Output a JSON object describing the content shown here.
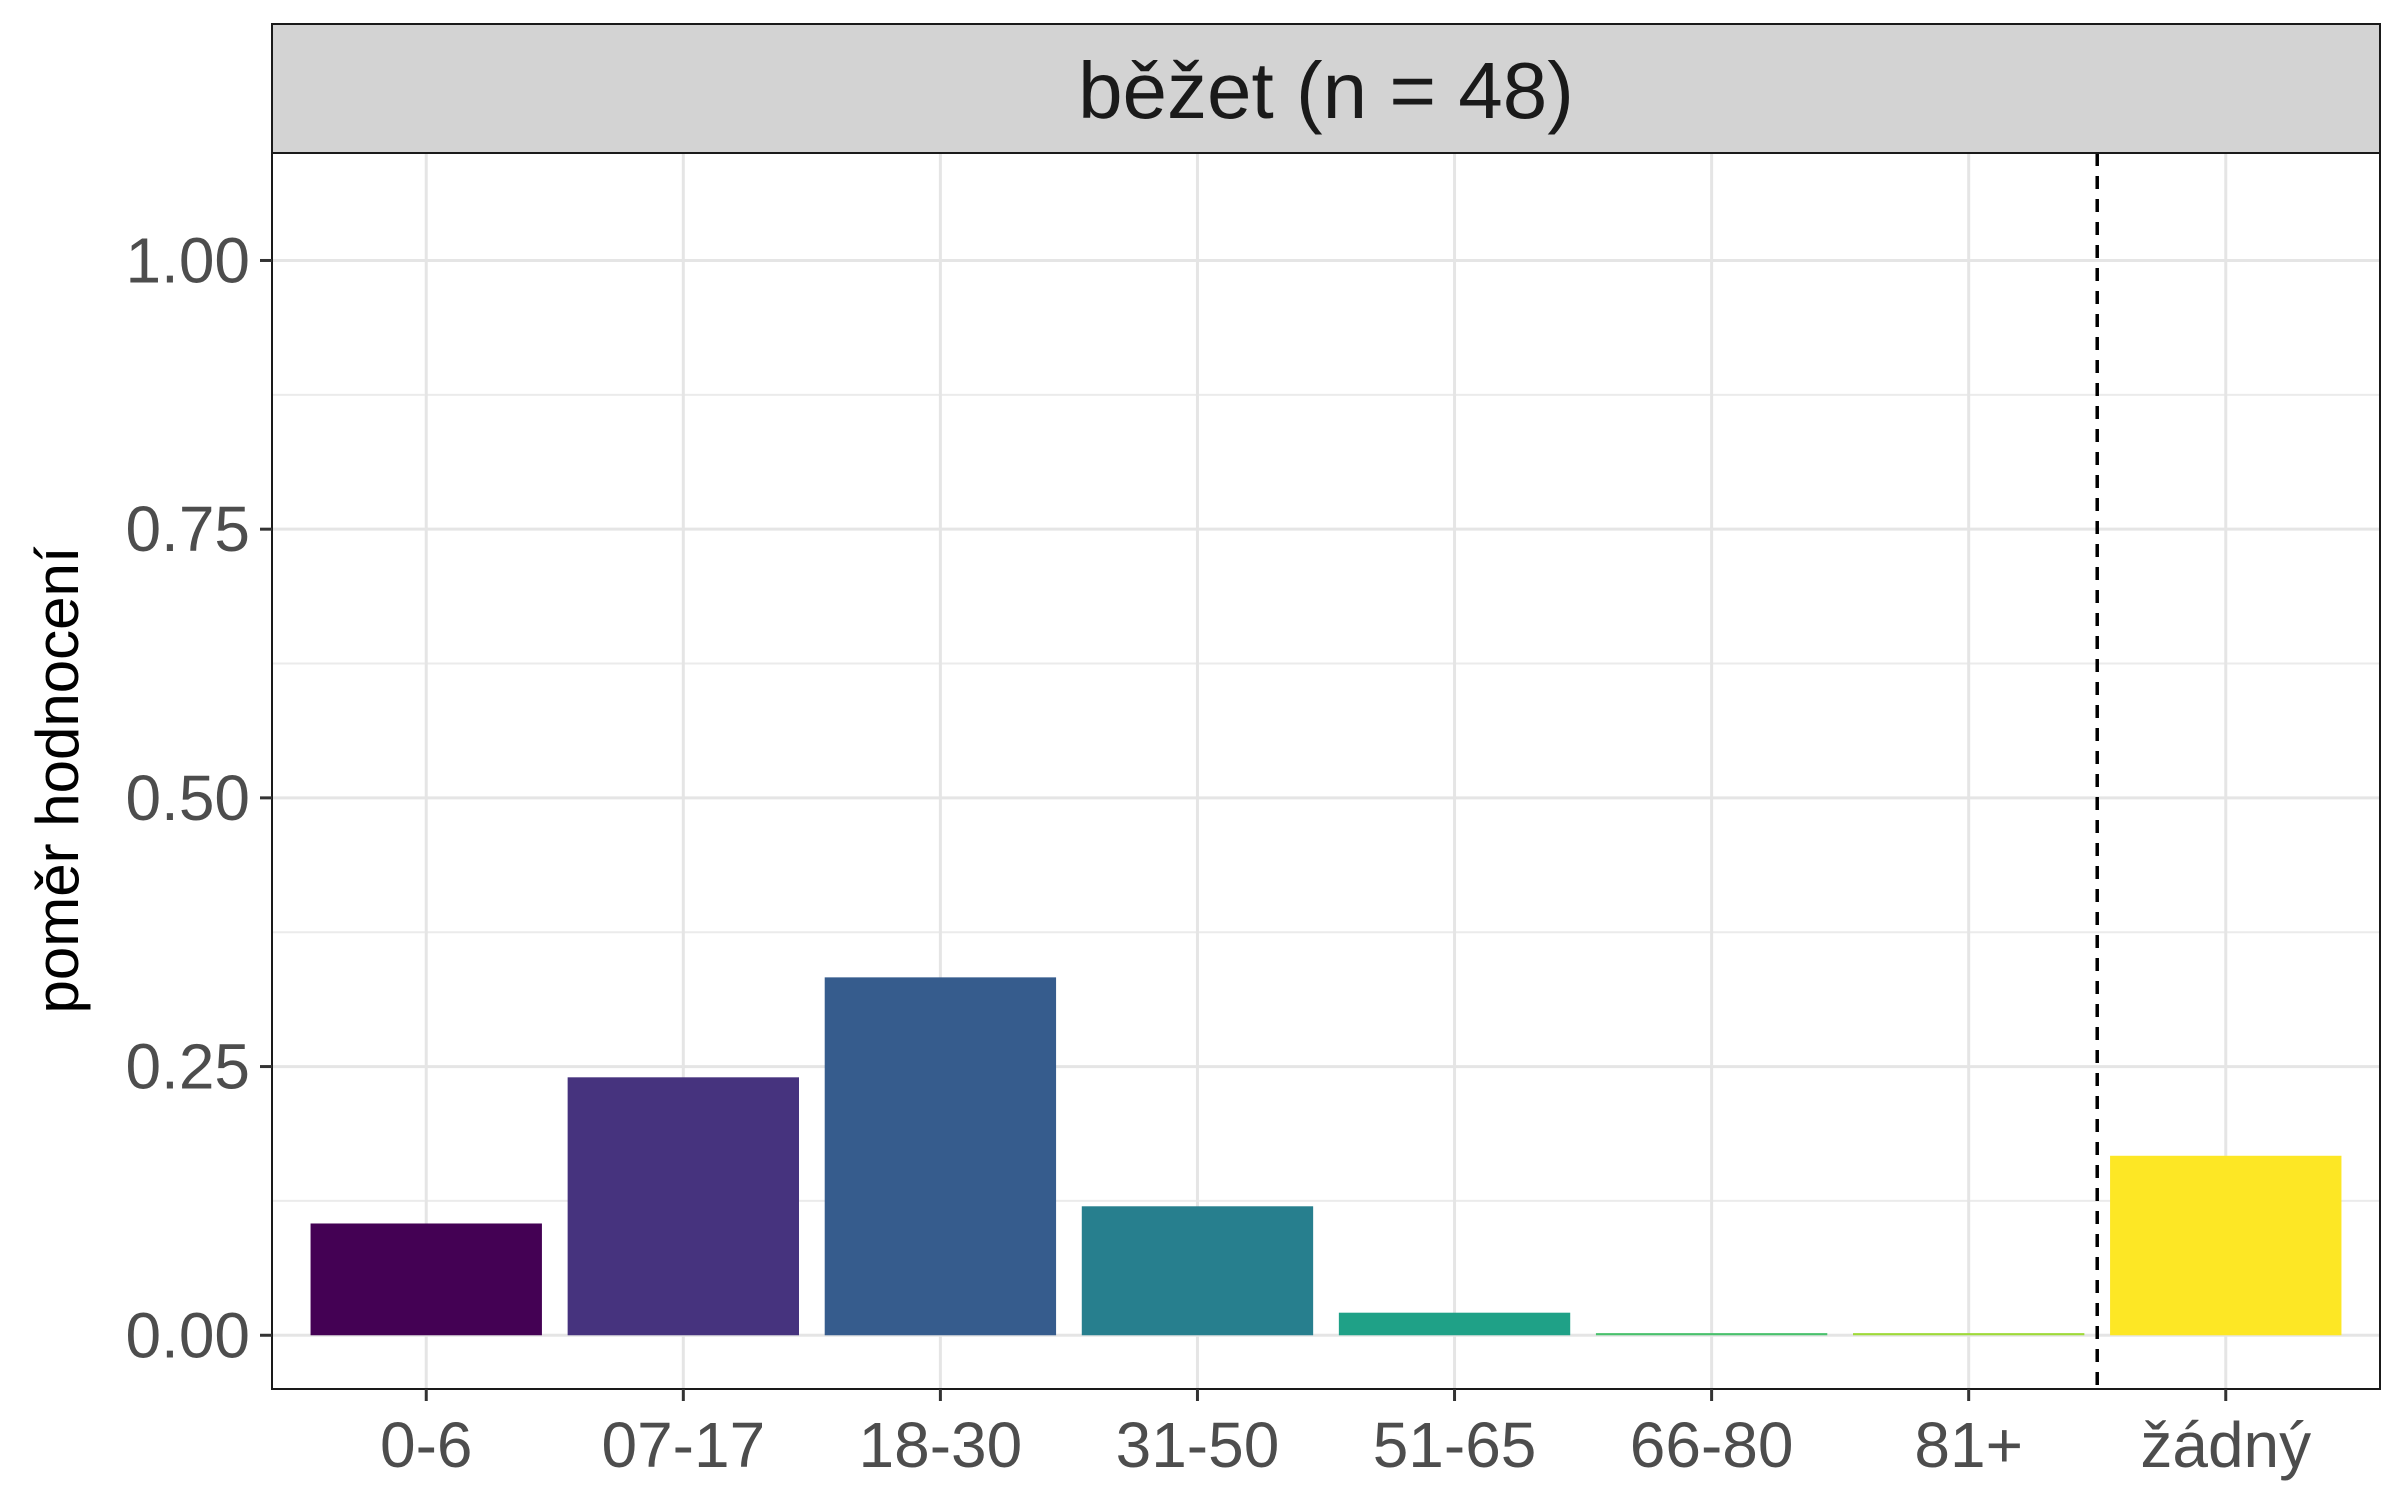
{
  "chart_data": {
    "type": "bar",
    "title": "běžet (n = 48)",
    "xlabel": "",
    "ylabel": "poměr hodnocení",
    "categories": [
      "0-6",
      "07-17",
      "18-30",
      "31-50",
      "51-65",
      "66-80",
      "81+",
      "žádný"
    ],
    "values": [
      0.104,
      0.24,
      0.333,
      0.12,
      0.021,
      0.002,
      0.002,
      0.167
    ],
    "colors": [
      "#440154",
      "#46337E",
      "#365C8D",
      "#277F8E",
      "#1FA187",
      "#4AC16D",
      "#9FDA3A",
      "#FDE725"
    ],
    "ylim": [
      -0.05,
      1.1
    ],
    "yticks": [
      0.0,
      0.25,
      0.5,
      0.75,
      1.0
    ],
    "ytick_labels": [
      "0.00",
      "0.25",
      "0.50",
      "0.75",
      "1.00"
    ],
    "grid": true,
    "separator": {
      "between": [
        "81+",
        "žádný"
      ],
      "style": "dashed"
    },
    "panel_strip": true,
    "legend": "none"
  }
}
